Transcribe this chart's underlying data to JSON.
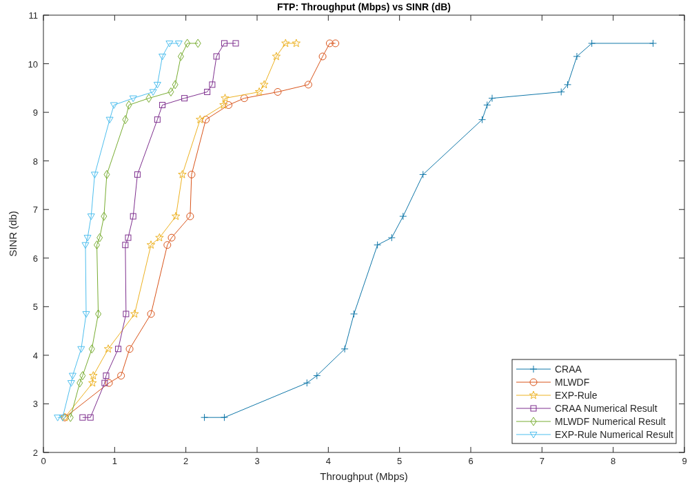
{
  "chart_data": {
    "type": "line",
    "title": "FTP: Throughput (Mbps) vs SINR (dB)",
    "xlabel": "Throughput (Mbps)",
    "ylabel": "SINR (db)",
    "xlim": [
      0,
      9
    ],
    "xticks": [
      0,
      1,
      2,
      3,
      4,
      5,
      6,
      7,
      8,
      9
    ],
    "ylim": [
      2,
      11
    ],
    "yticks": [
      2,
      3,
      4,
      5,
      6,
      7,
      8,
      9,
      10,
      11
    ],
    "grid": false,
    "legend": "bottom right",
    "line_style": "solid",
    "series": [
      {
        "name": "CRAA",
        "color": "#0e76a8",
        "marker": "cross",
        "x": [
          2.26,
          2.54,
          3.7,
          3.84,
          4.23,
          4.36,
          4.69,
          4.89,
          5.05,
          5.33,
          6.16,
          6.23,
          6.3,
          7.27,
          7.36,
          7.49,
          7.7,
          8.56
        ],
        "values": [
          2.72,
          2.72,
          3.43,
          3.58,
          4.13,
          4.85,
          6.27,
          6.42,
          6.86,
          7.72,
          8.85,
          9.15,
          9.29,
          9.42,
          9.57,
          10.15,
          10.42,
          10.42
        ]
      },
      {
        "name": "MLWDF",
        "color": "#d95319",
        "marker": "circle",
        "x": [
          0.3,
          0.92,
          1.09,
          1.21,
          1.51,
          1.74,
          1.8,
          2.06,
          2.08,
          2.28,
          2.6,
          2.82,
          3.29,
          3.72,
          3.92,
          4.02,
          4.1
        ],
        "values": [
          2.72,
          3.43,
          3.58,
          4.13,
          4.85,
          6.27,
          6.42,
          6.86,
          7.72,
          8.85,
          9.15,
          9.29,
          9.42,
          9.57,
          10.15,
          10.42,
          10.42
        ]
      },
      {
        "name": "EXP-Rule",
        "color": "#edb120",
        "marker": "star",
        "x": [
          0.3,
          0.69,
          0.7,
          0.91,
          1.28,
          1.51,
          1.63,
          1.86,
          1.95,
          2.2,
          2.53,
          2.55,
          3.03,
          3.1,
          3.27,
          3.4,
          3.55
        ],
        "values": [
          2.72,
          3.43,
          3.58,
          4.13,
          4.85,
          6.27,
          6.42,
          6.86,
          7.72,
          8.85,
          9.15,
          9.29,
          9.42,
          9.57,
          10.15,
          10.42,
          10.42
        ]
      },
      {
        "name": "CRAA Numerical Result",
        "color": "#7e2f8e",
        "marker": "square",
        "x": [
          0.55,
          0.66,
          0.86,
          0.88,
          1.05,
          1.16,
          1.15,
          1.19,
          1.26,
          1.32,
          1.6,
          1.67,
          1.98,
          2.3,
          2.37,
          2.43,
          2.54,
          2.7
        ],
        "values": [
          2.72,
          2.72,
          3.43,
          3.58,
          4.13,
          4.85,
          6.27,
          6.42,
          6.86,
          7.72,
          8.85,
          9.15,
          9.29,
          9.42,
          9.57,
          10.15,
          10.42,
          10.42
        ]
      },
      {
        "name": "MLWDF Numerical Result",
        "color": "#77ac30",
        "marker": "diamond",
        "x": [
          0.38,
          0.51,
          0.55,
          0.68,
          0.77,
          0.75,
          0.79,
          0.85,
          0.89,
          1.15,
          1.2,
          1.48,
          1.79,
          1.85,
          1.93,
          2.02,
          2.17
        ],
        "values": [
          2.72,
          3.43,
          3.58,
          4.13,
          4.85,
          6.27,
          6.42,
          6.86,
          7.72,
          8.85,
          9.15,
          9.29,
          9.42,
          9.57,
          10.15,
          10.42,
          10.42
        ]
      },
      {
        "name": "EXP-Rule Numerical Result",
        "color": "#4dbeee",
        "marker": "triangle",
        "x": [
          0.2,
          0.27,
          0.39,
          0.41,
          0.53,
          0.6,
          0.59,
          0.62,
          0.67,
          0.72,
          0.93,
          0.99,
          1.26,
          1.54,
          1.6,
          1.67,
          1.77,
          1.9
        ],
        "values": [
          2.72,
          2.72,
          3.43,
          3.58,
          4.13,
          4.85,
          6.27,
          6.42,
          6.86,
          7.72,
          8.85,
          9.15,
          9.29,
          9.42,
          9.57,
          10.15,
          10.42,
          10.42
        ]
      }
    ]
  }
}
